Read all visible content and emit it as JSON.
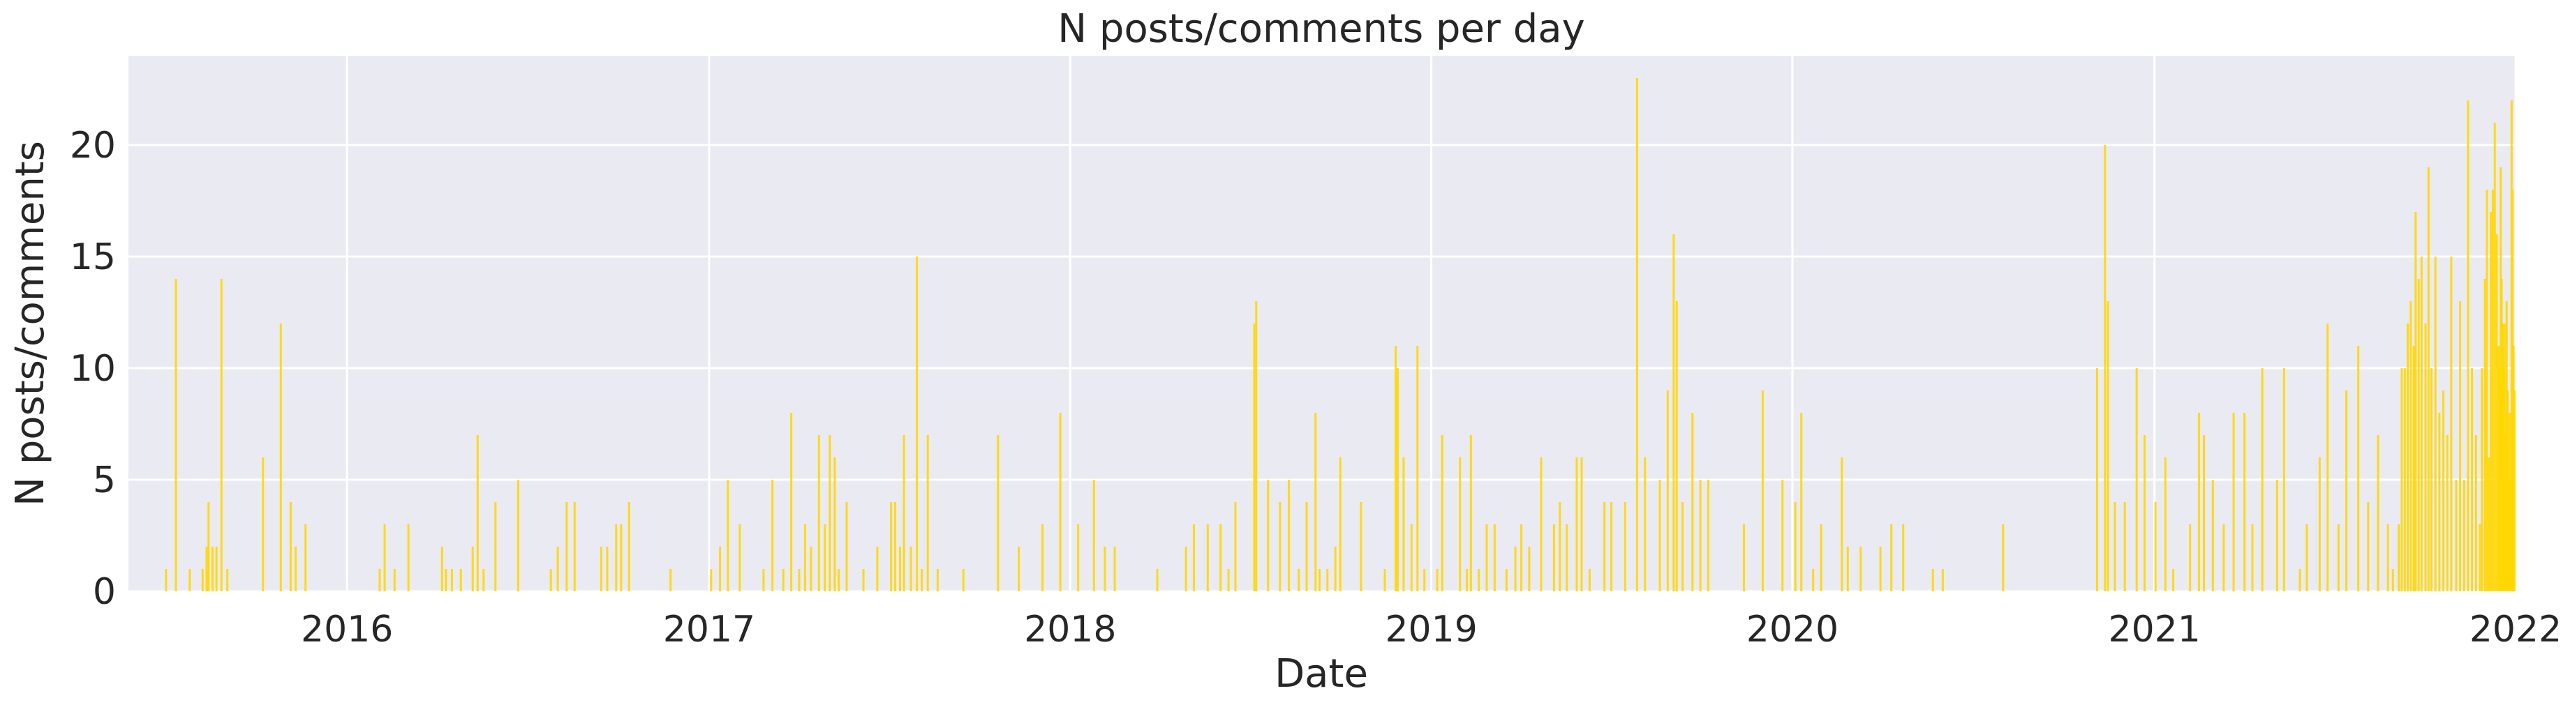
{
  "chart_data": {
    "type": "bar",
    "title": "N posts/comments per day",
    "xlabel": "Date",
    "ylabel": "N posts/comments",
    "x_start": "2015-05-25",
    "x_end": "2022-01-01",
    "ylim": [
      0,
      24
    ],
    "yticks": [
      0,
      5,
      10,
      15,
      20
    ],
    "xticks": [
      "2016",
      "2017",
      "2018",
      "2019",
      "2020",
      "2021",
      "2022"
    ],
    "grid": true,
    "colors": {
      "bar": "#FFD700",
      "background": "#EAEAF2",
      "grid": "#FFFFFF"
    },
    "series": [
      {
        "values": [
          [
            "2015-07-02",
            1
          ],
          [
            "2015-07-12",
            14
          ],
          [
            "2015-07-26",
            1
          ],
          [
            "2015-08-08",
            1
          ],
          [
            "2015-08-12",
            2
          ],
          [
            "2015-08-14",
            4
          ],
          [
            "2015-08-18",
            2
          ],
          [
            "2015-08-22",
            2
          ],
          [
            "2015-08-27",
            14
          ],
          [
            "2015-09-02",
            1
          ],
          [
            "2015-10-08",
            6
          ],
          [
            "2015-10-26",
            12
          ],
          [
            "2015-11-05",
            4
          ],
          [
            "2015-11-10",
            2
          ],
          [
            "2015-11-20",
            3
          ],
          [
            "2016-02-03",
            1
          ],
          [
            "2016-02-08",
            3
          ],
          [
            "2016-02-18",
            1
          ],
          [
            "2016-03-03",
            3
          ],
          [
            "2016-04-06",
            2
          ],
          [
            "2016-04-10",
            1
          ],
          [
            "2016-04-16",
            1
          ],
          [
            "2016-04-25",
            1
          ],
          [
            "2016-05-07",
            2
          ],
          [
            "2016-05-12",
            7
          ],
          [
            "2016-05-18",
            1
          ],
          [
            "2016-05-30",
            4
          ],
          [
            "2016-06-22",
            5
          ],
          [
            "2016-07-25",
            1
          ],
          [
            "2016-08-01",
            2
          ],
          [
            "2016-08-10",
            4
          ],
          [
            "2016-08-18",
            4
          ],
          [
            "2016-09-14",
            2
          ],
          [
            "2016-09-20",
            2
          ],
          [
            "2016-09-29",
            3
          ],
          [
            "2016-10-04",
            3
          ],
          [
            "2016-10-12",
            4
          ],
          [
            "2016-11-23",
            1
          ],
          [
            "2017-01-03",
            1
          ],
          [
            "2017-01-12",
            2
          ],
          [
            "2017-01-20",
            5
          ],
          [
            "2017-02-01",
            3
          ],
          [
            "2017-02-25",
            1
          ],
          [
            "2017-03-06",
            5
          ],
          [
            "2017-03-17",
            1
          ],
          [
            "2017-03-25",
            8
          ],
          [
            "2017-04-02",
            1
          ],
          [
            "2017-04-08",
            3
          ],
          [
            "2017-04-14",
            2
          ],
          [
            "2017-04-22",
            7
          ],
          [
            "2017-04-28",
            3
          ],
          [
            "2017-05-03",
            7
          ],
          [
            "2017-05-08",
            6
          ],
          [
            "2017-05-12",
            1
          ],
          [
            "2017-05-20",
            4
          ],
          [
            "2017-06-06",
            1
          ],
          [
            "2017-06-20",
            2
          ],
          [
            "2017-07-04",
            4
          ],
          [
            "2017-07-08",
            4
          ],
          [
            "2017-07-13",
            2
          ],
          [
            "2017-07-17",
            7
          ],
          [
            "2017-07-24",
            2
          ],
          [
            "2017-07-30",
            15
          ],
          [
            "2017-08-04",
            1
          ],
          [
            "2017-08-10",
            7
          ],
          [
            "2017-08-20",
            1
          ],
          [
            "2017-09-15",
            1
          ],
          [
            "2017-10-20",
            7
          ],
          [
            "2017-11-10",
            2
          ],
          [
            "2017-12-04",
            3
          ],
          [
            "2017-12-22",
            8
          ],
          [
            "2018-01-09",
            3
          ],
          [
            "2018-01-25",
            5
          ],
          [
            "2018-02-05",
            2
          ],
          [
            "2018-02-15",
            2
          ],
          [
            "2018-03-30",
            1
          ],
          [
            "2018-04-28",
            2
          ],
          [
            "2018-05-06",
            3
          ],
          [
            "2018-05-20",
            3
          ],
          [
            "2018-06-02",
            3
          ],
          [
            "2018-06-10",
            1
          ],
          [
            "2018-06-17",
            4
          ],
          [
            "2018-07-06",
            12
          ],
          [
            "2018-07-08",
            13
          ],
          [
            "2018-07-20",
            5
          ],
          [
            "2018-08-01",
            4
          ],
          [
            "2018-08-10",
            5
          ],
          [
            "2018-08-20",
            1
          ],
          [
            "2018-08-28",
            4
          ],
          [
            "2018-09-06",
            8
          ],
          [
            "2018-09-10",
            1
          ],
          [
            "2018-09-18",
            1
          ],
          [
            "2018-09-26",
            2
          ],
          [
            "2018-10-01",
            6
          ],
          [
            "2018-10-22",
            4
          ],
          [
            "2018-11-15",
            1
          ],
          [
            "2018-11-26",
            11
          ],
          [
            "2018-11-28",
            10
          ],
          [
            "2018-12-04",
            6
          ],
          [
            "2018-12-12",
            3
          ],
          [
            "2018-12-18",
            11
          ],
          [
            "2018-12-25",
            1
          ],
          [
            "2019-01-07",
            1
          ],
          [
            "2019-01-12",
            7
          ],
          [
            "2019-01-30",
            6
          ],
          [
            "2019-02-06",
            1
          ],
          [
            "2019-02-10",
            7
          ],
          [
            "2019-02-18",
            1
          ],
          [
            "2019-02-26",
            3
          ],
          [
            "2019-03-06",
            3
          ],
          [
            "2019-03-18",
            1
          ],
          [
            "2019-03-27",
            2
          ],
          [
            "2019-04-02",
            3
          ],
          [
            "2019-04-10",
            2
          ],
          [
            "2019-04-22",
            6
          ],
          [
            "2019-05-05",
            3
          ],
          [
            "2019-05-11",
            4
          ],
          [
            "2019-05-18",
            3
          ],
          [
            "2019-05-28",
            6
          ],
          [
            "2019-06-02",
            6
          ],
          [
            "2019-06-10",
            1
          ],
          [
            "2019-06-25",
            4
          ],
          [
            "2019-07-02",
            4
          ],
          [
            "2019-07-16",
            4
          ],
          [
            "2019-07-28",
            23
          ],
          [
            "2019-08-05",
            6
          ],
          [
            "2019-08-20",
            5
          ],
          [
            "2019-08-28",
            9
          ],
          [
            "2019-09-03",
            16
          ],
          [
            "2019-09-06",
            13
          ],
          [
            "2019-09-12",
            4
          ],
          [
            "2019-09-22",
            8
          ],
          [
            "2019-09-30",
            5
          ],
          [
            "2019-10-08",
            5
          ],
          [
            "2019-11-13",
            3
          ],
          [
            "2019-12-02",
            9
          ],
          [
            "2019-12-22",
            5
          ],
          [
            "2020-01-04",
            4
          ],
          [
            "2020-01-10",
            8
          ],
          [
            "2020-01-22",
            1
          ],
          [
            "2020-01-30",
            3
          ],
          [
            "2020-02-20",
            6
          ],
          [
            "2020-02-26",
            2
          ],
          [
            "2020-03-10",
            2
          ],
          [
            "2020-03-30",
            2
          ],
          [
            "2020-04-10",
            3
          ],
          [
            "2020-04-22",
            3
          ],
          [
            "2020-05-22",
            1
          ],
          [
            "2020-06-01",
            1
          ],
          [
            "2020-08-01",
            3
          ],
          [
            "2020-11-04",
            10
          ],
          [
            "2020-11-12",
            20
          ],
          [
            "2020-11-15",
            13
          ],
          [
            "2020-11-22",
            4
          ],
          [
            "2020-12-02",
            4
          ],
          [
            "2020-12-14",
            10
          ],
          [
            "2020-12-22",
            7
          ],
          [
            "2021-01-02",
            4
          ],
          [
            "2021-01-12",
            6
          ],
          [
            "2021-01-20",
            1
          ],
          [
            "2021-02-06",
            3
          ],
          [
            "2021-02-15",
            8
          ],
          [
            "2021-02-20",
            7
          ],
          [
            "2021-03-01",
            5
          ],
          [
            "2021-03-12",
            3
          ],
          [
            "2021-03-22",
            8
          ],
          [
            "2021-04-02",
            8
          ],
          [
            "2021-04-10",
            3
          ],
          [
            "2021-04-20",
            10
          ],
          [
            "2021-05-05",
            5
          ],
          [
            "2021-05-12",
            10
          ],
          [
            "2021-05-28",
            1
          ],
          [
            "2021-06-04",
            3
          ],
          [
            "2021-06-17",
            6
          ],
          [
            "2021-06-25",
            12
          ],
          [
            "2021-07-06",
            3
          ],
          [
            "2021-07-14",
            9
          ],
          [
            "2021-07-26",
            11
          ],
          [
            "2021-08-05",
            4
          ],
          [
            "2021-08-15",
            7
          ],
          [
            "2021-08-25",
            3
          ],
          [
            "2021-08-30",
            1
          ],
          [
            "2021-09-05",
            3
          ],
          [
            "2021-09-08",
            10
          ],
          [
            "2021-09-11",
            10
          ],
          [
            "2021-09-14",
            12
          ],
          [
            "2021-09-17",
            13
          ],
          [
            "2021-09-20",
            11
          ],
          [
            "2021-09-22",
            17
          ],
          [
            "2021-09-25",
            14
          ],
          [
            "2021-09-28",
            15
          ],
          [
            "2021-10-02",
            12
          ],
          [
            "2021-10-05",
            19
          ],
          [
            "2021-10-08",
            10
          ],
          [
            "2021-10-12",
            15
          ],
          [
            "2021-10-16",
            8
          ],
          [
            "2021-10-20",
            9
          ],
          [
            "2021-10-24",
            7
          ],
          [
            "2021-10-28",
            15
          ],
          [
            "2021-11-02",
            5
          ],
          [
            "2021-11-06",
            13
          ],
          [
            "2021-11-10",
            5
          ],
          [
            "2021-11-14",
            22
          ],
          [
            "2021-11-18",
            10
          ],
          [
            "2021-11-22",
            7
          ],
          [
            "2021-11-26",
            3
          ],
          [
            "2021-11-28",
            10
          ],
          [
            "2021-12-01",
            14
          ],
          [
            "2021-12-03",
            18
          ],
          [
            "2021-12-05",
            6
          ],
          [
            "2021-12-07",
            17
          ],
          [
            "2021-12-09",
            18
          ],
          [
            "2021-12-11",
            21
          ],
          [
            "2021-12-13",
            16
          ],
          [
            "2021-12-15",
            11
          ],
          [
            "2021-12-16",
            10
          ],
          [
            "2021-12-17",
            19
          ],
          [
            "2021-12-18",
            14
          ],
          [
            "2021-12-19",
            12
          ],
          [
            "2021-12-20",
            10
          ],
          [
            "2021-12-21",
            12
          ],
          [
            "2021-12-22",
            7
          ],
          [
            "2021-12-23",
            13
          ],
          [
            "2021-12-24",
            9
          ],
          [
            "2021-12-25",
            5
          ],
          [
            "2021-12-26",
            8
          ],
          [
            "2021-12-27",
            5
          ],
          [
            "2021-12-28",
            22
          ],
          [
            "2021-12-29",
            18
          ],
          [
            "2021-12-30",
            11
          ],
          [
            "2021-12-31",
            9
          ]
        ]
      }
    ]
  }
}
